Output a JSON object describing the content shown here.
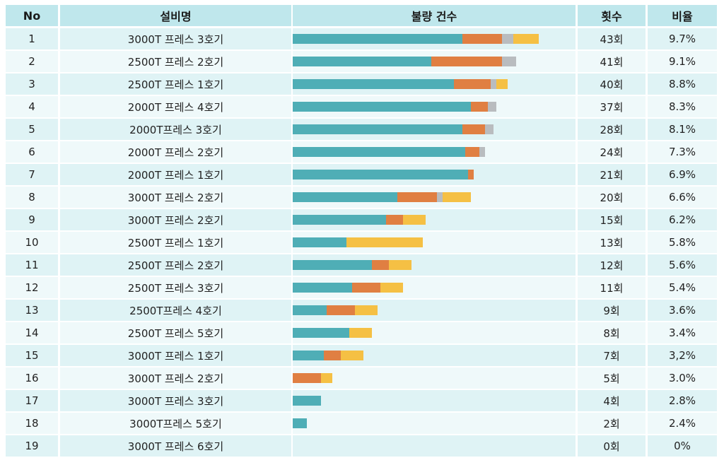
{
  "headers": {
    "no": "No",
    "name": "설비명",
    "bar": "불량 건수",
    "count": "횟수",
    "ratio": "비율"
  },
  "colors": {
    "teal": "#4faeb6",
    "orange": "#e07f42",
    "gray": "#b9bcbf",
    "yellow": "#f5c044"
  },
  "rows": [
    {
      "no": "1",
      "name": "3000T 프레스 3호기",
      "count": "43회",
      "ratio": "9.7%"
    },
    {
      "no": "2",
      "name": "2500T 프레스 2호기",
      "count": "41회",
      "ratio": "9.1%"
    },
    {
      "no": "3",
      "name": "2500T 프레스 1호기",
      "count": "40회",
      "ratio": "8.8%"
    },
    {
      "no": "4",
      "name": "2000T 프레스 4호기",
      "count": "37회",
      "ratio": "8.3%"
    },
    {
      "no": "5",
      "name": "2000T프레스 3호기",
      "count": "28회",
      "ratio": "8.1%"
    },
    {
      "no": "6",
      "name": "2000T 프레스 2호기",
      "count": "24회",
      "ratio": "7.3%"
    },
    {
      "no": "7",
      "name": "2000T 프레스 1호기",
      "count": "21회",
      "ratio": "6.9%"
    },
    {
      "no": "8",
      "name": "3000T 프레스 2호기",
      "count": "20회",
      "ratio": "6.6%"
    },
    {
      "no": "9",
      "name": "3000T 프레스 2호기",
      "count": "15회",
      "ratio": "6.2%"
    },
    {
      "no": "10",
      "name": "2500T 프레스 1호기",
      "count": "13회",
      "ratio": "5.8%"
    },
    {
      "no": "11",
      "name": "2500T 프레스 2호기",
      "count": "12회",
      "ratio": "5.6%"
    },
    {
      "no": "12",
      "name": "2500T 프레스 3호기",
      "count": "11회",
      "ratio": "5.4%"
    },
    {
      "no": "13",
      "name": "2500T프레스 4호기",
      "count": "9회",
      "ratio": "3.6%"
    },
    {
      "no": "14",
      "name": "2500T 프레스 5호기",
      "count": "8회",
      "ratio": "3.4%"
    },
    {
      "no": "15",
      "name": "3000T 프레스 1호기",
      "count": "7회",
      "ratio": "3,2%"
    },
    {
      "no": "16",
      "name": "3000T 프레스 2호기",
      "count": "5회",
      "ratio": "3.0%"
    },
    {
      "no": "17",
      "name": "3000T 프레스 3호기",
      "count": "4회",
      "ratio": "2.8%"
    },
    {
      "no": "18",
      "name": "3000T프레스 5호기",
      "count": "2회",
      "ratio": "2.4%"
    },
    {
      "no": "19",
      "name": "3000T 프레스 6호기",
      "count": "0회",
      "ratio": "0%"
    }
  ],
  "chart_data": {
    "type": "bar",
    "orientation": "horizontal",
    "stacked": true,
    "categories": [
      "1",
      "2",
      "3",
      "4",
      "5",
      "6",
      "7",
      "8",
      "9",
      "10",
      "11",
      "12",
      "13",
      "14",
      "15",
      "16",
      "17",
      "18",
      "19"
    ],
    "series": [
      {
        "color": "#4faeb6",
        "values": [
          60,
          49,
          57,
          63,
          60,
          61,
          62,
          37,
          33,
          19,
          28,
          21,
          12,
          20,
          11,
          0,
          10,
          5,
          0
        ]
      },
      {
        "color": "#e07f42",
        "values": [
          14,
          25,
          13,
          6,
          8,
          5,
          2,
          14,
          6,
          0,
          6,
          10,
          10,
          0,
          6,
          10,
          0,
          0,
          0
        ]
      },
      {
        "color": "#b9bcbf",
        "values": [
          4,
          5,
          2,
          3,
          3,
          2,
          0,
          2,
          0,
          0,
          0,
          0,
          0,
          0,
          0,
          0,
          0,
          0,
          0
        ]
      },
      {
        "color": "#f5c044",
        "values": [
          9,
          0,
          4,
          0,
          0,
          0,
          0,
          10,
          8,
          27,
          8,
          8,
          8,
          8,
          8,
          4,
          0,
          0,
          0
        ]
      }
    ],
    "xlim": [
      0,
      100
    ],
    "grid": false,
    "legend": "none"
  }
}
